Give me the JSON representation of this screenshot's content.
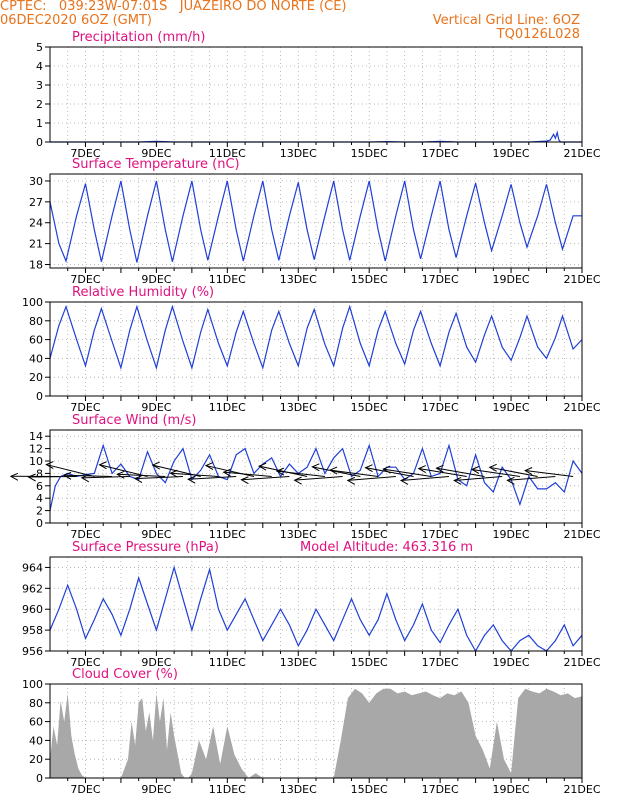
{
  "header": {
    "line1": "CPTEC:   039:23W-07:01S   JUAZEIRO DO NORTE (CE)",
    "line2": "06DEC2020 6OZ (GMT)",
    "grid_note": "Vertical Grid Line: 6OZ",
    "model": "TQ0126L028"
  },
  "colors": {
    "header": "#e8731c",
    "title": "#e0117f",
    "line": "#1f3fd6",
    "cloud": "#a8a8a8",
    "wind": "#000000"
  },
  "chart_data": [
    {
      "type": "line",
      "title": "Precipitation (mm/h)",
      "ylim": [
        0,
        5
      ],
      "yticks": [
        0,
        1,
        2,
        3,
        4,
        5
      ],
      "xlim": [
        6,
        21
      ],
      "xticks": [
        7,
        9,
        11,
        13,
        15,
        17,
        19,
        21
      ],
      "xticklabels": [
        "7DEC",
        "9DEC",
        "11DEC",
        "13DEC",
        "15DEC",
        "17DEC",
        "19DEC",
        "21DEC"
      ],
      "x": [
        6,
        6.5,
        7,
        7.5,
        8,
        8.5,
        9,
        9.5,
        10,
        10.5,
        11,
        11.5,
        12,
        12.5,
        13,
        13.5,
        14,
        14.5,
        15,
        15.5,
        16,
        16.5,
        17,
        17.5,
        18,
        18.5,
        19,
        19.5,
        20,
        20.1,
        20.2,
        20.25,
        20.3,
        20.35,
        20.4,
        20.5,
        21
      ],
      "values": [
        0,
        0,
        0,
        0,
        0,
        0,
        0.03,
        0,
        0,
        0,
        0,
        0,
        0,
        0,
        0,
        0,
        0,
        0,
        0,
        0.02,
        0,
        0,
        0.03,
        0,
        0,
        0,
        0,
        0,
        0.05,
        0.1,
        0.4,
        0.2,
        0.5,
        0.1,
        0,
        0,
        0
      ]
    },
    {
      "type": "line",
      "title": "Surface Temperature (nC)",
      "ylim": [
        17.5,
        31
      ],
      "yticks": [
        18,
        21,
        24,
        27,
        30
      ],
      "xlim": [
        6,
        21
      ],
      "xticks": [
        7,
        9,
        11,
        13,
        15,
        17,
        19,
        21
      ],
      "xticklabels": [
        "7DEC",
        "9DEC",
        "11DEC",
        "13DEC",
        "15DEC",
        "17DEC",
        "19DEC",
        "21DEC"
      ],
      "x": [
        6,
        6.25,
        6.45,
        6.75,
        7,
        7.25,
        7.45,
        7.75,
        8,
        8.25,
        8.45,
        8.75,
        9,
        9.25,
        9.45,
        9.75,
        10,
        10.25,
        10.45,
        10.75,
        11,
        11.25,
        11.45,
        11.75,
        12,
        12.25,
        12.45,
        12.75,
        13,
        13.25,
        13.45,
        13.75,
        14,
        14.25,
        14.45,
        14.75,
        15,
        15.25,
        15.45,
        15.75,
        16,
        16.25,
        16.45,
        16.75,
        17,
        17.25,
        17.45,
        17.75,
        18,
        18.25,
        18.45,
        18.75,
        19,
        19.25,
        19.45,
        19.75,
        20,
        20.25,
        20.45,
        20.75,
        21
      ],
      "values": [
        27,
        21,
        18.5,
        25,
        29.6,
        23,
        18.4,
        25,
        30,
        23,
        18.3,
        25,
        30,
        23,
        18.4,
        25,
        30,
        23,
        18.6,
        25,
        30,
        23,
        18.5,
        25,
        30,
        23,
        18.6,
        25,
        29.8,
        23,
        18.7,
        25,
        30,
        23,
        18.6,
        25,
        30,
        23,
        18.5,
        25,
        30,
        23,
        18.8,
        25,
        30,
        23,
        19,
        25,
        29.7,
        24,
        20,
        25,
        29.5,
        24,
        20.5,
        25,
        29.5,
        24,
        20.2,
        25,
        25
      ]
    },
    {
      "type": "line",
      "title": "Relative Humidity (%)",
      "ylim": [
        0,
        100
      ],
      "yticks": [
        0,
        20,
        40,
        60,
        80,
        100
      ],
      "xlim": [
        6,
        21
      ],
      "xticks": [
        7,
        9,
        11,
        13,
        15,
        17,
        19,
        21
      ],
      "xticklabels": [
        "7DEC",
        "9DEC",
        "11DEC",
        "13DEC",
        "15DEC",
        "17DEC",
        "19DEC",
        "21DEC"
      ],
      "x": [
        6,
        6.25,
        6.45,
        6.75,
        7,
        7.25,
        7.45,
        7.75,
        8,
        8.25,
        8.45,
        8.75,
        9,
        9.25,
        9.45,
        9.75,
        10,
        10.25,
        10.45,
        10.75,
        11,
        11.25,
        11.45,
        11.75,
        12,
        12.25,
        12.45,
        12.75,
        13,
        13.25,
        13.45,
        13.75,
        14,
        14.25,
        14.45,
        14.75,
        15,
        15.25,
        15.45,
        15.75,
        16,
        16.25,
        16.45,
        16.75,
        17,
        17.25,
        17.45,
        17.75,
        18,
        18.25,
        18.45,
        18.75,
        19,
        19.25,
        19.45,
        19.75,
        20,
        20.25,
        20.45,
        20.75,
        21
      ],
      "values": [
        40,
        75,
        95,
        60,
        32,
        70,
        93,
        58,
        30,
        70,
        95,
        58,
        30,
        70,
        95,
        58,
        30,
        68,
        92,
        56,
        32,
        68,
        90,
        56,
        30,
        70,
        90,
        56,
        32,
        72,
        92,
        55,
        32,
        72,
        95,
        56,
        32,
        70,
        90,
        56,
        34,
        70,
        90,
        56,
        32,
        68,
        88,
        52,
        36,
        65,
        85,
        52,
        38,
        62,
        85,
        52,
        40,
        62,
        85,
        50,
        60
      ]
    },
    {
      "type": "line",
      "title": "Surface Wind (m/s)",
      "ylim": [
        0,
        15
      ],
      "yticks": [
        0,
        2,
        4,
        6,
        8,
        10,
        12,
        14
      ],
      "xlim": [
        6,
        21
      ],
      "xticks": [
        7,
        9,
        11,
        13,
        15,
        17,
        19,
        21
      ],
      "xticklabels": [
        "7DEC",
        "9DEC",
        "11DEC",
        "13DEC",
        "15DEC",
        "17DEC",
        "19DEC",
        "21DEC"
      ],
      "x": [
        6,
        6.15,
        6.3,
        6.5,
        6.75,
        7,
        7.25,
        7.5,
        7.75,
        8,
        8.25,
        8.5,
        8.75,
        9,
        9.25,
        9.5,
        9.75,
        10,
        10.25,
        10.5,
        10.75,
        11,
        11.25,
        11.5,
        11.75,
        12,
        12.25,
        12.5,
        12.75,
        13,
        13.25,
        13.5,
        13.75,
        14,
        14.25,
        14.5,
        14.75,
        15,
        15.25,
        15.5,
        15.75,
        16,
        16.25,
        16.5,
        16.75,
        17,
        17.25,
        17.5,
        17.75,
        18,
        18.25,
        18.5,
        18.75,
        19,
        19.25,
        19.5,
        19.75,
        20,
        20.25,
        20.5,
        20.75,
        21
      ],
      "values": [
        2,
        6,
        7.5,
        8,
        7.5,
        7.8,
        8,
        12.5,
        8,
        9.5,
        7.5,
        7,
        11.5,
        8,
        6.5,
        10,
        12,
        7,
        8.5,
        11,
        7.5,
        7,
        11,
        12,
        8,
        9.5,
        10.5,
        7.5,
        9.5,
        8,
        9,
        12,
        8,
        10.5,
        12,
        7.5,
        8.5,
        12.5,
        7.5,
        9,
        9,
        7,
        8,
        12,
        7.5,
        8,
        12.5,
        7,
        6,
        11,
        6.5,
        5,
        9,
        7,
        3,
        7.5,
        5.5,
        5.5,
        6.5,
        5,
        10,
        8
      ]
    },
    {
      "type": "line",
      "title": "Surface Pressure (hPa)",
      "subtitle": "Model Altitude: 463.316 m",
      "ylim": [
        956,
        965
      ],
      "yticks": [
        956,
        958,
        960,
        962,
        964
      ],
      "xlim": [
        6,
        21
      ],
      "xticks": [
        7,
        9,
        11,
        13,
        15,
        17,
        19,
        21
      ],
      "xticklabels": [
        "7DEC",
        "9DEC",
        "11DEC",
        "13DEC",
        "15DEC",
        "17DEC",
        "19DEC",
        "21DEC"
      ],
      "x": [
        6,
        6.25,
        6.5,
        6.75,
        7,
        7.25,
        7.5,
        7.75,
        8,
        8.25,
        8.5,
        8.75,
        9,
        9.25,
        9.5,
        9.75,
        10,
        10.25,
        10.5,
        10.75,
        11,
        11.25,
        11.5,
        11.75,
        12,
        12.25,
        12.5,
        12.75,
        13,
        13.25,
        13.5,
        13.75,
        14,
        14.25,
        14.5,
        14.75,
        15,
        15.25,
        15.5,
        15.75,
        16,
        16.25,
        16.5,
        16.75,
        17,
        17.25,
        17.5,
        17.75,
        18,
        18.25,
        18.5,
        18.75,
        19,
        19.25,
        19.5,
        19.75,
        20,
        20.25,
        20.5,
        20.75,
        21
      ],
      "values": [
        958,
        960,
        962.3,
        960,
        957.2,
        959,
        961,
        959.5,
        957.5,
        960,
        963,
        960.5,
        958,
        961,
        964,
        961,
        958,
        961,
        963.8,
        960,
        958,
        959.5,
        961,
        959,
        957,
        958.5,
        960,
        958.5,
        956.5,
        958,
        960,
        958.5,
        957,
        959,
        961,
        959,
        957.5,
        959,
        961.5,
        959,
        957,
        958.5,
        960.5,
        958,
        956.8,
        958.5,
        960,
        957.5,
        956,
        957.5,
        958.5,
        957,
        956,
        957,
        957.5,
        956.5,
        956,
        957,
        958.5,
        956.5,
        957.5
      ]
    },
    {
      "type": "area",
      "title": "Cloud Cover (%)",
      "ylim": [
        0,
        100
      ],
      "yticks": [
        0,
        20,
        40,
        60,
        80,
        100
      ],
      "xlim": [
        6,
        21
      ],
      "xticks": [
        7,
        9,
        11,
        13,
        15,
        17,
        19,
        21
      ],
      "xticklabels": [
        "7DEC",
        "9DEC",
        "11DEC",
        "13DEC",
        "15DEC",
        "17DEC",
        "19DEC",
        "21DEC"
      ],
      "x": [
        6,
        6.1,
        6.2,
        6.3,
        6.4,
        6.5,
        6.6,
        6.7,
        6.8,
        6.9,
        7,
        7.5,
        8,
        8.2,
        8.3,
        8.4,
        8.5,
        8.6,
        8.7,
        8.8,
        8.9,
        9,
        9.1,
        9.2,
        9.3,
        9.4,
        9.5,
        9.6,
        9.7,
        9.8,
        9.9,
        10,
        10.2,
        10.4,
        10.6,
        10.8,
        11,
        11.2,
        11.4,
        11.6,
        11.8,
        12,
        12.5,
        13,
        13.5,
        14,
        14.2,
        14.4,
        14.6,
        14.8,
        15,
        15.2,
        15.4,
        15.6,
        15.8,
        16,
        16.2,
        16.4,
        16.6,
        16.8,
        17,
        17.2,
        17.4,
        17.6,
        17.8,
        18,
        18.2,
        18.4,
        18.6,
        18.8,
        19,
        19.2,
        19.4,
        19.6,
        19.8,
        20,
        20.2,
        20.4,
        20.6,
        20.8,
        21
      ],
      "values": [
        20,
        55,
        35,
        82,
        60,
        90,
        45,
        25,
        10,
        3,
        0,
        0,
        0,
        20,
        60,
        35,
        80,
        85,
        50,
        70,
        40,
        90,
        60,
        85,
        30,
        70,
        45,
        25,
        5,
        0,
        0,
        5,
        40,
        20,
        55,
        15,
        55,
        25,
        10,
        0,
        5,
        0,
        0,
        0,
        0,
        0,
        40,
        85,
        95,
        90,
        80,
        90,
        95,
        95,
        90,
        92,
        88,
        90,
        92,
        88,
        85,
        90,
        88,
        92,
        80,
        45,
        30,
        10,
        60,
        20,
        5,
        85,
        95,
        92,
        90,
        95,
        92,
        88,
        90,
        85,
        87
      ]
    }
  ]
}
